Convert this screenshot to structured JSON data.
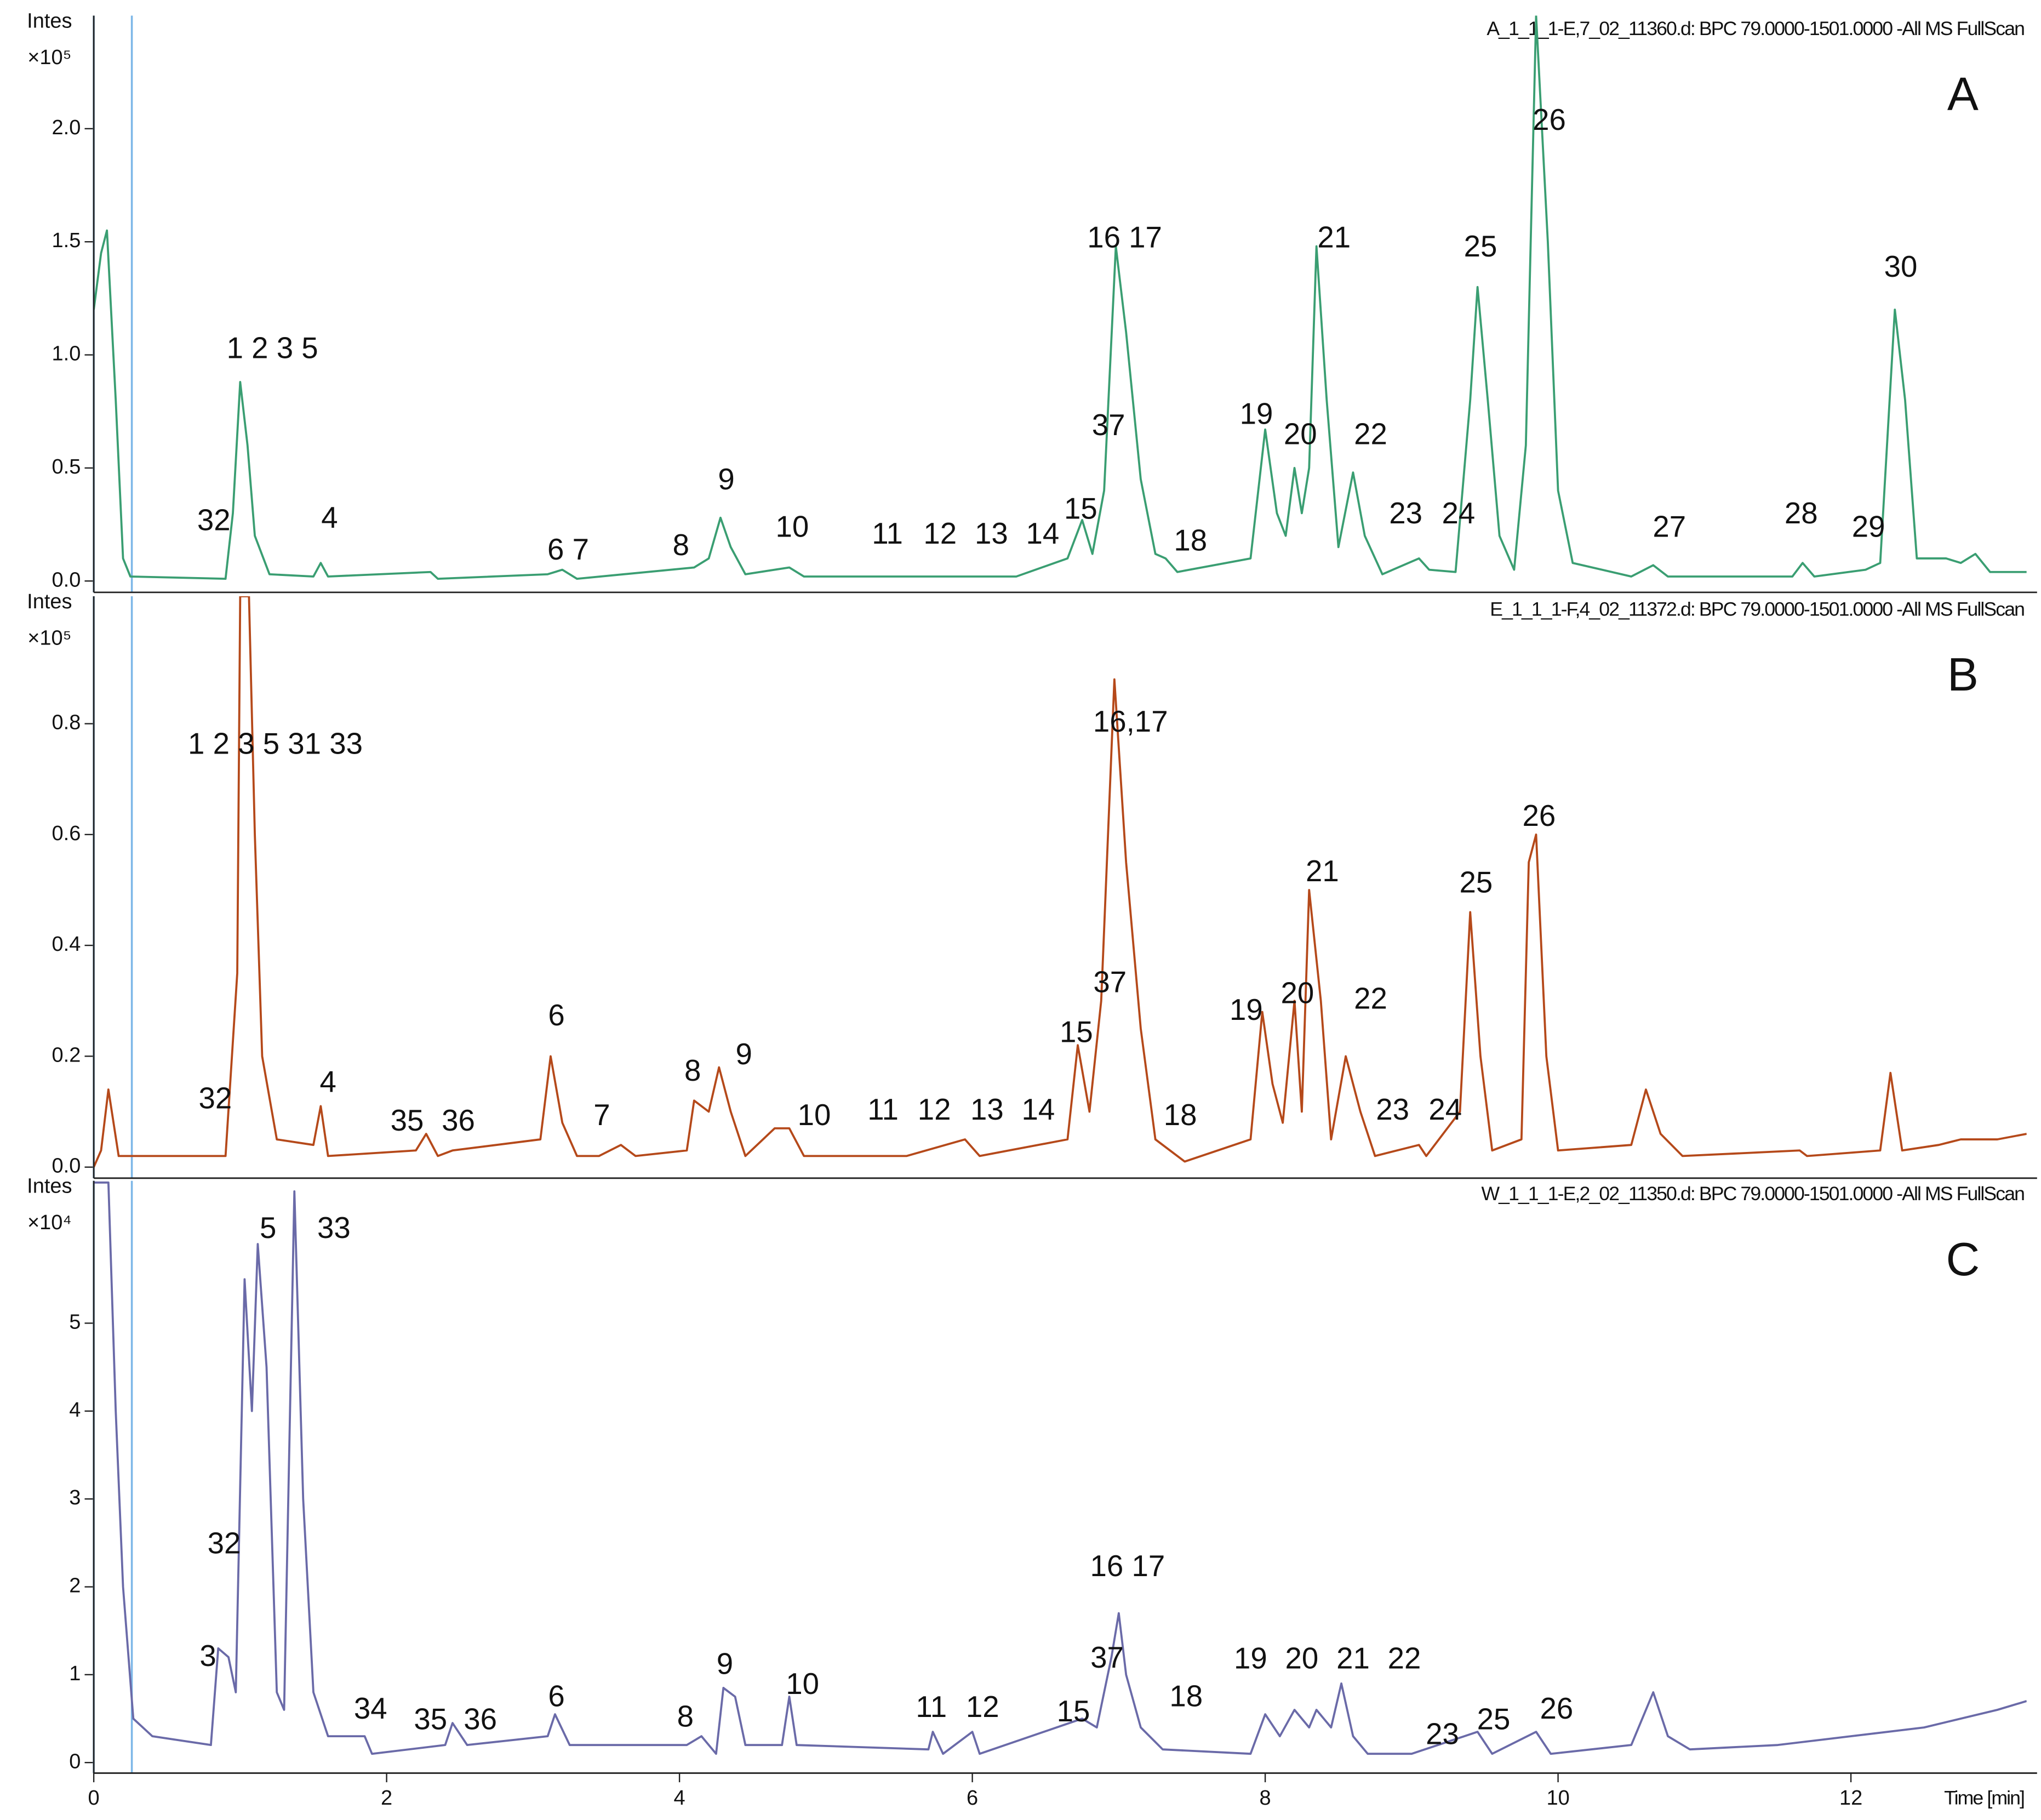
{
  "chart_data": [
    {
      "type": "line",
      "header": "A_1_1_1-E,7_02_11360.d: BPC 79.0000-1501.0000 -All MS FullScan",
      "panel_label": "A",
      "y_label": "Intes",
      "y_unit": "×10⁵",
      "color": "#3a9e72",
      "xlim": [
        0,
        13.2
      ],
      "ylim": [
        -0.05,
        2.5
      ],
      "yticks": [
        {
          "value": 0,
          "label": "0.0"
        },
        0.5,
        {
          "value": 1,
          "label": "1.0"
        },
        1.5,
        {
          "value": 2,
          "label": "2.0"
        }
      ],
      "marker_lines": [
        0,
        0.26
      ],
      "x": [
        0,
        0.05,
        0.09,
        0.15,
        0.2,
        0.25,
        0.9,
        0.95,
        1.0,
        1.05,
        1.1,
        1.2,
        1.5,
        1.55,
        1.6,
        2.3,
        2.35,
        3.1,
        3.2,
        3.3,
        4.1,
        4.2,
        4.28,
        4.35,
        4.45,
        4.75,
        4.85,
        5.9,
        6.3,
        6.65,
        6.75,
        6.82,
        6.9,
        6.98,
        7.05,
        7.15,
        7.25,
        7.32,
        7.4,
        7.9,
        8.0,
        8.08,
        8.14,
        8.2,
        8.25,
        8.3,
        8.35,
        8.42,
        8.5,
        8.6,
        8.68,
        8.8,
        9.05,
        9.12,
        9.3,
        9.4,
        9.45,
        9.52,
        9.6,
        9.7,
        9.78,
        9.85,
        9.93,
        10.0,
        10.1,
        10.5,
        10.65,
        10.75,
        11.2,
        11.6,
        11.67,
        11.75,
        12.1,
        12.2,
        12.3,
        12.37,
        12.45,
        12.65,
        12.75,
        12.85,
        12.95,
        13.2
      ],
      "values": [
        1.2,
        1.45,
        1.55,
        0.8,
        0.1,
        0.02,
        0.01,
        0.3,
        0.88,
        0.6,
        0.2,
        0.03,
        0.02,
        0.08,
        0.02,
        0.04,
        0.01,
        0.03,
        0.05,
        0.01,
        0.06,
        0.1,
        0.28,
        0.15,
        0.03,
        0.06,
        0.02,
        0.02,
        0.02,
        0.1,
        0.27,
        0.12,
        0.4,
        1.48,
        1.1,
        0.45,
        0.12,
        0.1,
        0.04,
        0.1,
        0.67,
        0.3,
        0.2,
        0.5,
        0.3,
        0.5,
        1.48,
        0.8,
        0.15,
        0.48,
        0.2,
        0.03,
        0.1,
        0.05,
        0.04,
        0.8,
        1.3,
        0.8,
        0.2,
        0.05,
        0.6,
        2.5,
        1.5,
        0.4,
        0.08,
        0.02,
        0.07,
        0.02,
        0.02,
        0.02,
        0.08,
        0.02,
        0.05,
        0.08,
        1.2,
        0.8,
        0.1,
        0.1,
        0.08,
        0.12,
        0.04,
        0.04
      ],
      "annotations": [
        {
          "text": "1 2 3 5",
          "x": 1.22,
          "y": 1.02
        },
        {
          "text": "32",
          "x": 0.82,
          "y": 0.26
        },
        {
          "text": "4",
          "x": 1.61,
          "y": 0.27
        },
        {
          "text": "6 7",
          "x": 3.24,
          "y": 0.13
        },
        {
          "text": "8",
          "x": 4.01,
          "y": 0.15
        },
        {
          "text": "9",
          "x": 4.32,
          "y": 0.44
        },
        {
          "text": "10",
          "x": 4.77,
          "y": 0.23
        },
        {
          "text": "11",
          "x": 5.42,
          "y": 0.2
        },
        {
          "text": "12",
          "x": 5.78,
          "y": 0.2
        },
        {
          "text": "13",
          "x": 6.13,
          "y": 0.2
        },
        {
          "text": "14",
          "x": 6.48,
          "y": 0.2
        },
        {
          "text": "15",
          "x": 6.74,
          "y": 0.31
        },
        {
          "text": "16 17",
          "x": 7.04,
          "y": 1.51
        },
        {
          "text": "37",
          "x": 6.93,
          "y": 0.68
        },
        {
          "text": "18",
          "x": 7.49,
          "y": 0.17
        },
        {
          "text": "19",
          "x": 7.94,
          "y": 0.73
        },
        {
          "text": "20",
          "x": 8.24,
          "y": 0.64
        },
        {
          "text": "21",
          "x": 8.47,
          "y": 1.51
        },
        {
          "text": "22",
          "x": 8.72,
          "y": 0.64
        },
        {
          "text": "23",
          "x": 8.96,
          "y": 0.29
        },
        {
          "text": "24",
          "x": 9.32,
          "y": 0.29
        },
        {
          "text": "25",
          "x": 9.47,
          "y": 1.47
        },
        {
          "text": "26",
          "x": 9.94,
          "y": 2.03
        },
        {
          "text": "27",
          "x": 10.76,
          "y": 0.23
        },
        {
          "text": "28",
          "x": 11.66,
          "y": 0.29
        },
        {
          "text": "29",
          "x": 12.12,
          "y": 0.23
        },
        {
          "text": "30",
          "x": 12.34,
          "y": 1.38
        }
      ]
    },
    {
      "type": "line",
      "header": "E_1_1_1-F,4_02_11372.d: BPC 79.0000-1501.0000 -All MS FullScan",
      "panel_label": "B",
      "y_label": "Intes",
      "y_unit": "×10⁵",
      "color": "#b5491a",
      "xlim": [
        0,
        13.2
      ],
      "ylim": [
        -0.02,
        1.03
      ],
      "yticks": [
        {
          "value": 0,
          "label": "0.0"
        },
        0.2,
        0.4,
        0.6,
        0.8
      ],
      "marker_lines": [
        0,
        0.26
      ],
      "x": [
        0,
        0.05,
        0.1,
        0.17,
        0.9,
        0.98,
        1.0,
        1.06,
        1.1,
        1.15,
        1.25,
        1.5,
        1.55,
        1.6,
        2.2,
        2.27,
        2.35,
        2.45,
        3.05,
        3.12,
        3.2,
        3.3,
        3.45,
        3.6,
        3.7,
        4.05,
        4.1,
        4.2,
        4.27,
        4.35,
        4.45,
        4.65,
        4.75,
        4.85,
        5.55,
        5.95,
        6.05,
        6.25,
        6.65,
        6.72,
        6.8,
        6.88,
        6.97,
        7.05,
        7.15,
        7.25,
        7.3,
        7.45,
        7.9,
        7.98,
        8.05,
        8.12,
        8.2,
        8.25,
        8.3,
        8.38,
        8.45,
        8.55,
        8.65,
        8.75,
        9.05,
        9.1,
        9.33,
        9.4,
        9.47,
        9.55,
        9.75,
        9.8,
        9.85,
        9.92,
        10.0,
        10.5,
        10.6,
        10.7,
        10.85,
        11.65,
        11.7,
        12.2,
        12.27,
        12.35,
        12.6,
        12.75,
        13.0,
        13.2
      ],
      "values": [
        0.0,
        0.03,
        0.14,
        0.02,
        0.02,
        0.35,
        1.03,
        1.03,
        0.6,
        0.2,
        0.05,
        0.04,
        0.11,
        0.02,
        0.03,
        0.06,
        0.02,
        0.03,
        0.05,
        0.2,
        0.08,
        0.02,
        0.02,
        0.04,
        0.02,
        0.03,
        0.12,
        0.1,
        0.18,
        0.1,
        0.02,
        0.07,
        0.07,
        0.02,
        0.02,
        0.05,
        0.02,
        0.03,
        0.05,
        0.22,
        0.1,
        0.3,
        0.88,
        0.55,
        0.25,
        0.05,
        0.04,
        0.01,
        0.05,
        0.28,
        0.15,
        0.08,
        0.3,
        0.1,
        0.5,
        0.3,
        0.05,
        0.2,
        0.1,
        0.02,
        0.04,
        0.02,
        0.1,
        0.46,
        0.2,
        0.03,
        0.05,
        0.55,
        0.6,
        0.2,
        0.03,
        0.04,
        0.14,
        0.06,
        0.02,
        0.03,
        0.02,
        0.03,
        0.17,
        0.03,
        0.04,
        0.05,
        0.05,
        0.06
      ],
      "annotations": [
        {
          "text": "1 2 3 5 31 33",
          "x": 1.24,
          "y": 0.76
        },
        {
          "text": "32",
          "x": 0.83,
          "y": 0.12
        },
        {
          "text": "4",
          "x": 1.6,
          "y": 0.15
        },
        {
          "text": "35",
          "x": 2.14,
          "y": 0.08
        },
        {
          "text": "36",
          "x": 2.49,
          "y": 0.08
        },
        {
          "text": "6",
          "x": 3.16,
          "y": 0.27
        },
        {
          "text": "7",
          "x": 3.47,
          "y": 0.09
        },
        {
          "text": "8",
          "x": 4.09,
          "y": 0.17
        },
        {
          "text": "9",
          "x": 4.44,
          "y": 0.2
        },
        {
          "text": "10",
          "x": 4.92,
          "y": 0.09
        },
        {
          "text": "11",
          "x": 5.39,
          "y": 0.1
        },
        {
          "text": "12",
          "x": 5.74,
          "y": 0.1
        },
        {
          "text": "13",
          "x": 6.1,
          "y": 0.1
        },
        {
          "text": "14",
          "x": 6.45,
          "y": 0.1
        },
        {
          "text": "15",
          "x": 6.71,
          "y": 0.24
        },
        {
          "text": "16,17",
          "x": 7.08,
          "y": 0.8
        },
        {
          "text": "37",
          "x": 6.94,
          "y": 0.33
        },
        {
          "text": "18",
          "x": 7.42,
          "y": 0.09
        },
        {
          "text": "19",
          "x": 7.87,
          "y": 0.28
        },
        {
          "text": "20",
          "x": 8.22,
          "y": 0.31
        },
        {
          "text": "21",
          "x": 8.39,
          "y": 0.53
        },
        {
          "text": "22",
          "x": 8.72,
          "y": 0.3
        },
        {
          "text": "23",
          "x": 8.87,
          "y": 0.1
        },
        {
          "text": "24",
          "x": 9.23,
          "y": 0.1
        },
        {
          "text": "25",
          "x": 9.44,
          "y": 0.51
        },
        {
          "text": "26",
          "x": 9.87,
          "y": 0.63
        }
      ]
    },
    {
      "type": "line",
      "header": "W_1_1_1-E,2_02_11350.d: BPC 79.0000-1501.0000 -All MS FullScan",
      "panel_label": "C",
      "y_label": "Intes",
      "y_unit": "×10⁴",
      "color": "#6a6aa8",
      "x_label": "Time [min]",
      "xlim": [
        0,
        13.2
      ],
      "ylim": [
        -0.12,
        6.62
      ],
      "xticks": [
        0,
        2,
        4,
        6,
        8,
        10,
        12
      ],
      "yticks": [
        0,
        1,
        2,
        3,
        4,
        5
      ],
      "marker_lines": [
        0,
        0.26
      ],
      "x": [
        0,
        0.1,
        0.15,
        0.2,
        0.27,
        0.4,
        0.8,
        0.85,
        0.92,
        0.97,
        1.03,
        1.08,
        1.12,
        1.18,
        1.25,
        1.3,
        1.37,
        1.43,
        1.5,
        1.6,
        1.85,
        1.9,
        2.4,
        2.45,
        2.55,
        3.1,
        3.15,
        3.25,
        4.05,
        4.15,
        4.25,
        4.3,
        4.38,
        4.45,
        4.7,
        4.75,
        4.8,
        5.7,
        5.73,
        5.8,
        6.0,
        6.05,
        6.75,
        6.85,
        6.95,
        7.0,
        7.05,
        7.15,
        7.3,
        7.9,
        8.0,
        8.1,
        8.2,
        8.3,
        8.35,
        8.45,
        8.52,
        8.6,
        8.7,
        9.0,
        9.45,
        9.55,
        9.85,
        9.95,
        10.5,
        10.65,
        10.75,
        10.9,
        11.5,
        12.0,
        12.5,
        13.0,
        13.2
      ],
      "values": [
        6.6,
        6.6,
        4.0,
        2.0,
        0.5,
        0.3,
        0.2,
        1.3,
        1.2,
        0.8,
        5.5,
        4.0,
        5.9,
        4.5,
        0.8,
        0.6,
        6.5,
        3.0,
        0.8,
        0.3,
        0.3,
        0.1,
        0.2,
        0.45,
        0.2,
        0.3,
        0.55,
        0.2,
        0.2,
        0.3,
        0.1,
        0.85,
        0.75,
        0.2,
        0.2,
        0.75,
        0.2,
        0.15,
        0.35,
        0.1,
        0.35,
        0.1,
        0.5,
        0.4,
        1.2,
        1.7,
        1.0,
        0.4,
        0.15,
        0.1,
        0.55,
        0.3,
        0.6,
        0.4,
        0.6,
        0.4,
        0.9,
        0.3,
        0.1,
        0.1,
        0.35,
        0.1,
        0.35,
        0.1,
        0.2,
        0.8,
        0.3,
        0.15,
        0.2,
        0.3,
        0.4,
        0.6,
        0.7
      ],
      "annotations": [
        {
          "text": "5",
          "x": 1.19,
          "y": 6.06
        },
        {
          "text": "33",
          "x": 1.64,
          "y": 6.06
        },
        {
          "text": "32",
          "x": 0.89,
          "y": 2.47
        },
        {
          "text": "3",
          "x": 0.78,
          "y": 1.19
        },
        {
          "text": "34",
          "x": 1.89,
          "y": 0.59
        },
        {
          "text": "35",
          "x": 2.3,
          "y": 0.47
        },
        {
          "text": "36",
          "x": 2.64,
          "y": 0.47
        },
        {
          "text": "6",
          "x": 3.16,
          "y": 0.73
        },
        {
          "text": "8",
          "x": 4.04,
          "y": 0.5
        },
        {
          "text": "9",
          "x": 4.31,
          "y": 1.1
        },
        {
          "text": "10",
          "x": 4.84,
          "y": 0.87
        },
        {
          "text": "11",
          "x": 5.72,
          "y": 0.61
        },
        {
          "text": "12",
          "x": 6.07,
          "y": 0.61
        },
        {
          "text": "15",
          "x": 6.69,
          "y": 0.56
        },
        {
          "text": "16 17",
          "x": 7.06,
          "y": 2.21
        },
        {
          "text": "37",
          "x": 6.92,
          "y": 1.17
        },
        {
          "text": "18",
          "x": 7.46,
          "y": 0.73
        },
        {
          "text": "19",
          "x": 7.9,
          "y": 1.16
        },
        {
          "text": "20",
          "x": 8.25,
          "y": 1.16
        },
        {
          "text": "21",
          "x": 8.6,
          "y": 1.16
        },
        {
          "text": "22",
          "x": 8.95,
          "y": 1.16
        },
        {
          "text": "23",
          "x": 9.21,
          "y": 0.3
        },
        {
          "text": "25",
          "x": 9.56,
          "y": 0.47
        },
        {
          "text": "26",
          "x": 9.99,
          "y": 0.59
        }
      ]
    }
  ]
}
